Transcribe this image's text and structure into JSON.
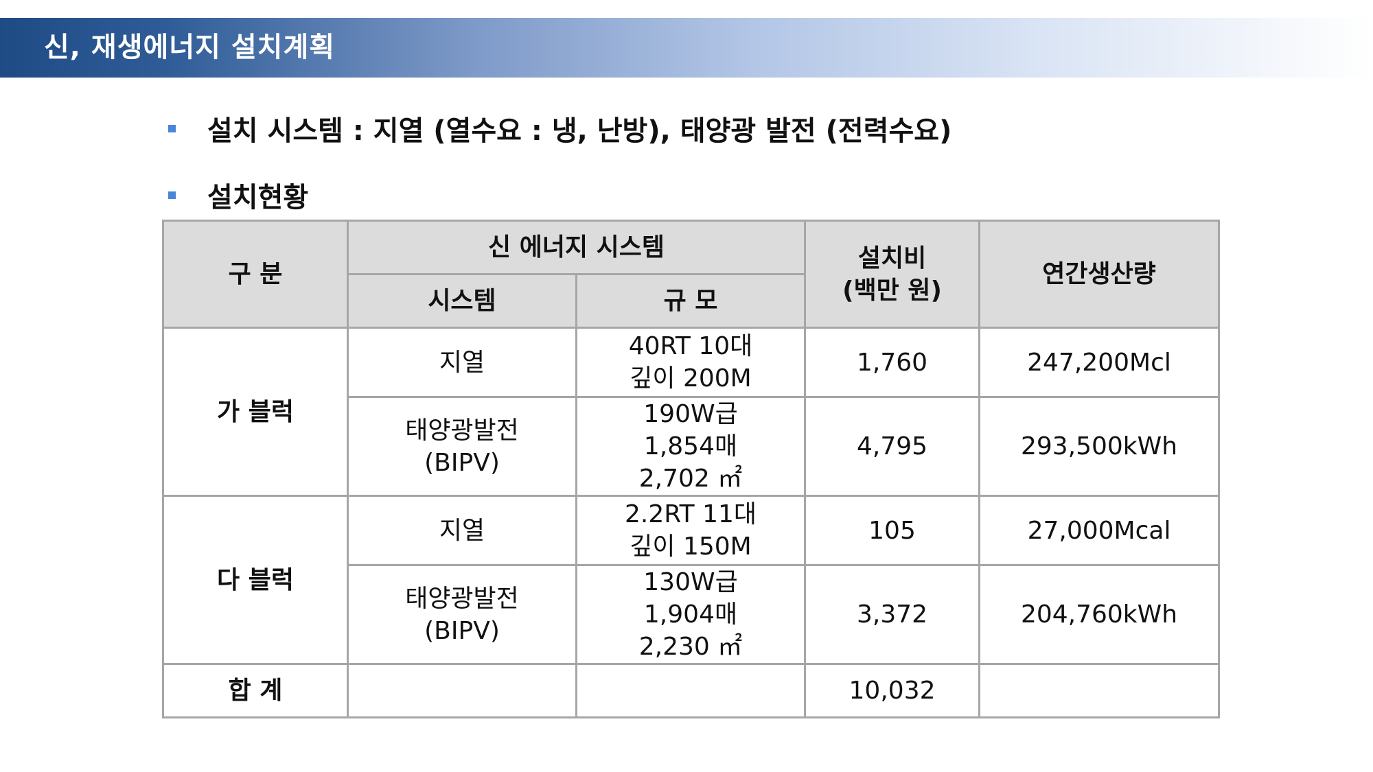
{
  "title": "신, 재생에너지 설치계획",
  "bullets": [
    "설치 시스템 : 지열 (열수요 : 냉, 난방), 태양광 발전 (전력수요)",
    "설치현황"
  ],
  "table": {
    "headers": {
      "category": "구 분",
      "group": "신 에너지 시스템",
      "system": "시스템",
      "scale": "규 모",
      "cost_line1": "설치비",
      "cost_line2": "(백만 원)",
      "annual": "연간생산량"
    },
    "blocks": [
      {
        "name": "가 블럭",
        "rows": [
          {
            "system": [
              "지열"
            ],
            "scale": [
              "40RT 10대",
              "깊이 200M"
            ],
            "cost": "1,760",
            "annual": "247,200Mcl"
          },
          {
            "system": [
              "태양광발전",
              "(BIPV)"
            ],
            "scale": [
              "190W급",
              "1,854매",
              "2,702 ㎡"
            ],
            "cost": "4,795",
            "annual": "293,500kWh"
          }
        ]
      },
      {
        "name": "다 블럭",
        "rows": [
          {
            "system": [
              "지열"
            ],
            "scale": [
              "2.2RT 11대",
              "깊이 150M"
            ],
            "cost": "105",
            "annual": "27,000Mcal"
          },
          {
            "system": [
              "태양광발전",
              "(BIPV)"
            ],
            "scale": [
              "130W급",
              "1,904매",
              "2,230 ㎡"
            ],
            "cost": "3,372",
            "annual": "204,760kWh"
          }
        ]
      }
    ],
    "total": {
      "label": "합 계",
      "cost": "10,032"
    }
  },
  "colors": {
    "title_bar_start": "#1f4b85",
    "bullet_square": "#4a86d8",
    "header_bg": "#dcdcdc",
    "table_border": "#a6a6a6"
  }
}
